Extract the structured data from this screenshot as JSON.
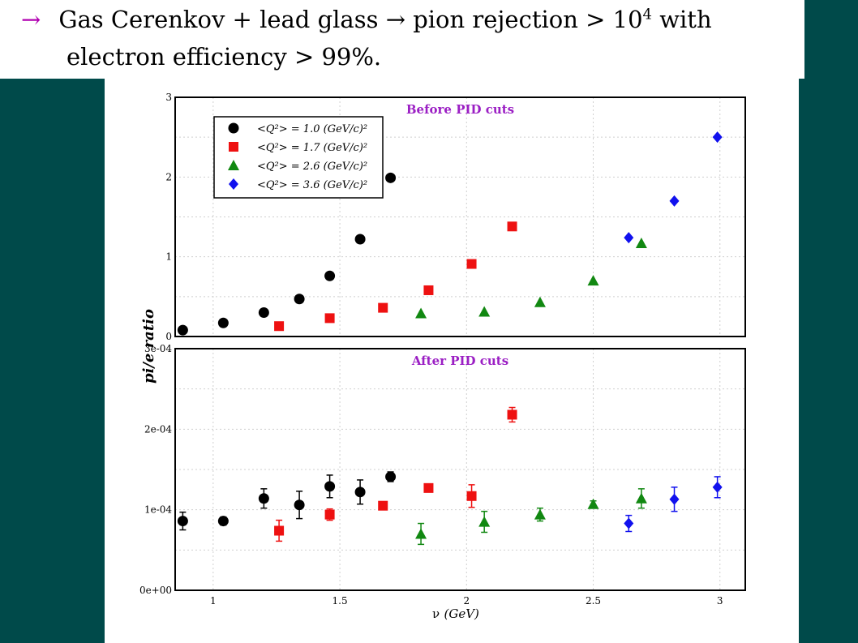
{
  "slide": {
    "arrow": "→",
    "line1": "Gas Cerenkov + lead glass → pion rejection > 10",
    "line1_sup": "4",
    "line1_end": " with",
    "line2": "electron efficiency > 99%."
  },
  "chart_data": [
    {
      "type": "scatter",
      "title": "Before PID cuts",
      "xlim": [
        0.85,
        3.1
      ],
      "ylim": [
        0,
        3
      ],
      "y_ticks": [
        "0",
        "1",
        "2",
        "3"
      ],
      "grid": true,
      "legend_position": "top-left",
      "series": [
        {
          "name": "<Q²> = 1.0 (GeV/c)²",
          "marker": "circle",
          "color": "#000000",
          "x": [
            0.88,
            1.04,
            1.2,
            1.34,
            1.46,
            1.58,
            1.7
          ],
          "y": [
            0.08,
            0.17,
            0.3,
            0.47,
            0.76,
            1.22,
            1.99
          ]
        },
        {
          "name": "<Q²> = 1.7 (GeV/c)²",
          "marker": "square",
          "color": "#ee1111",
          "x": [
            1.26,
            1.46,
            1.67,
            1.85,
            2.02,
            2.18
          ],
          "y": [
            0.13,
            0.23,
            0.36,
            0.58,
            0.91,
            1.38
          ]
        },
        {
          "name": "<Q²> = 2.6 (GeV/c)²",
          "marker": "triangle",
          "color": "#118811",
          "x": [
            1.82,
            2.07,
            2.29,
            2.5,
            2.69
          ],
          "y": [
            0.29,
            0.31,
            0.43,
            0.7,
            1.17
          ]
        },
        {
          "name": "<Q²> = 3.6 (GeV/c)²",
          "marker": "diamond",
          "color": "#1111ee",
          "x": [
            2.64,
            2.82,
            2.99
          ],
          "y": [
            1.24,
            1.7,
            2.5
          ]
        }
      ]
    },
    {
      "type": "scatter",
      "title": "After PID cuts",
      "xlabel": "ν",
      "xlabel_unit": "(GeV)",
      "ylabel": "pi/e ratio",
      "xlim": [
        0.85,
        3.1
      ],
      "ylim": [
        0,
        0.0003
      ],
      "x_ticks": [
        "1",
        "1.5",
        "2",
        "2.5",
        "3"
      ],
      "y_ticks": [
        "0e+00",
        "1e-04",
        "2e-04",
        "3e-04"
      ],
      "grid": true,
      "series": [
        {
          "marker": "circle",
          "color": "#000000",
          "x": [
            0.88,
            1.04,
            1.2,
            1.34,
            1.46,
            1.58,
            1.7
          ],
          "y": [
            8.6e-05,
            8.6e-05,
            0.000114,
            0.000106,
            0.000129,
            0.000122,
            0.000141
          ],
          "err": [
            1.1e-05,
            5e-06,
            1.2e-05,
            1.7e-05,
            1.4e-05,
            1.5e-05,
            6e-06
          ]
        },
        {
          "marker": "square",
          "color": "#ee1111",
          "x": [
            1.26,
            1.46,
            1.67,
            1.85,
            2.02,
            2.18
          ],
          "y": [
            7.4e-05,
            9.4e-05,
            0.000105,
            0.000127,
            0.000117,
            0.000218
          ],
          "err": [
            1.3e-05,
            7e-06,
            4e-06,
            4e-06,
            1.4e-05,
            9e-06
          ]
        },
        {
          "marker": "triangle",
          "color": "#118811",
          "x": [
            1.82,
            2.07,
            2.29,
            2.5,
            2.69
          ],
          "y": [
            7e-05,
            8.5e-05,
            9.4e-05,
            0.000107,
            0.000114
          ],
          "err": [
            1.3e-05,
            1.3e-05,
            8e-06,
            4e-06,
            1.2e-05
          ]
        },
        {
          "marker": "diamond",
          "color": "#1111ee",
          "x": [
            2.64,
            2.82,
            2.99
          ],
          "y": [
            8.3e-05,
            0.000113,
            0.000128
          ],
          "err": [
            1e-05,
            1.5e-05,
            1.3e-05
          ]
        }
      ]
    }
  ]
}
